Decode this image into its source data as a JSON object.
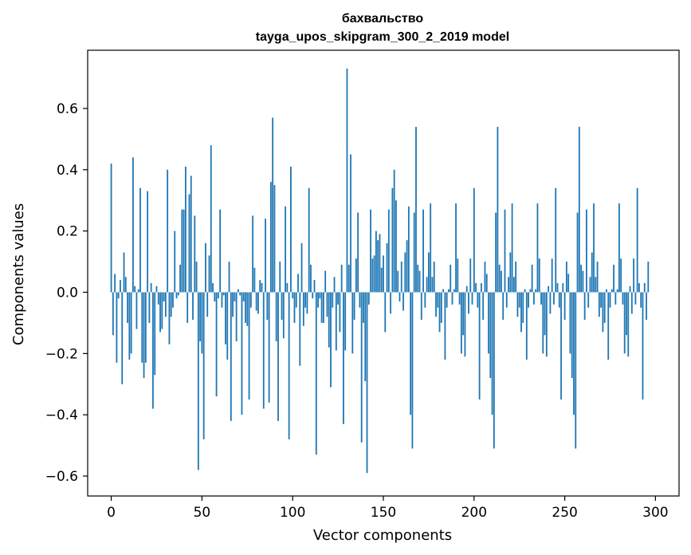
{
  "chart_data": {
    "type": "bar",
    "title_line1": "бахвальство",
    "title_line2": "tayga_upos_skipgram_300_2_2019 model",
    "xlabel": "Vector components",
    "ylabel": "Components values",
    "xlim": [
      -13,
      313
    ],
    "ylim": [
      -0.665,
      0.79
    ],
    "xticks": [
      0,
      50,
      100,
      150,
      200,
      250,
      300
    ],
    "yticks": [
      -0.6,
      -0.4,
      -0.2,
      0.0,
      0.2,
      0.4,
      0.6
    ],
    "ytick_labels": [
      "−0.6",
      "−0.4",
      "−0.2",
      "0.0",
      "0.2",
      "0.4",
      "0.6"
    ],
    "bar_color": "#1f77b4",
    "grid": false,
    "values": [
      0.42,
      -0.14,
      0.06,
      -0.23,
      -0.02,
      0.04,
      -0.3,
      0.13,
      0.05,
      -0.1,
      -0.22,
      -0.2,
      0.44,
      0.02,
      -0.12,
      0.01,
      0.34,
      -0.23,
      -0.28,
      -0.23,
      0.33,
      -0.1,
      0.03,
      -0.38,
      -0.27,
      0.02,
      -0.04,
      -0.13,
      -0.12,
      -0.03,
      -0.08,
      0.4,
      -0.17,
      -0.08,
      -0.05,
      0.2,
      -0.02,
      -0.01,
      0.09,
      0.27,
      0.27,
      0.41,
      -0.1,
      0.32,
      0.38,
      -0.09,
      0.25,
      0.1,
      -0.58,
      -0.16,
      -0.2,
      -0.48,
      0.16,
      -0.08,
      0.12,
      0.48,
      0.03,
      -0.03,
      -0.34,
      -0.02,
      0.27,
      -0.05,
      -0.01,
      -0.17,
      -0.22,
      0.1,
      -0.42,
      -0.08,
      -0.03,
      -0.16,
      0.01,
      -0.01,
      -0.4,
      -0.03,
      -0.1,
      -0.11,
      -0.35,
      -0.05,
      0.25,
      0.08,
      -0.06,
      -0.07,
      0.04,
      0.03,
      -0.38,
      0.24,
      -0.09,
      -0.36,
      0.36,
      0.57,
      0.35,
      -0.16,
      -0.42,
      0.1,
      -0.09,
      -0.15,
      0.28,
      0.03,
      -0.48,
      0.41,
      -0.02,
      -0.1,
      -0.05,
      0.06,
      -0.24,
      0.16,
      -0.11,
      -0.05,
      -0.07,
      0.34,
      0.09,
      -0.02,
      0.04,
      -0.53,
      -0.05,
      -0.02,
      -0.1,
      -0.1,
      0.07,
      -0.08,
      -0.18,
      -0.31,
      -0.05,
      0.05,
      -0.19,
      -0.04,
      -0.13,
      0.09,
      -0.43,
      -0.19,
      0.73,
      0.09,
      0.45,
      -0.2,
      -0.09,
      0.11,
      0.26,
      -0.05,
      -0.49,
      -0.1,
      -0.29,
      -0.59,
      -0.04,
      0.27,
      0.11,
      0.12,
      0.2,
      0.17,
      0.19,
      0.08,
      0.12,
      -0.13,
      0.16,
      0.27,
      -0.07,
      0.34,
      0.4,
      0.3,
      0.07,
      -0.03,
      0.1,
      -0.06,
      0.13,
      0.17,
      0.28,
      -0.4,
      -0.51,
      0.26,
      0.54,
      0.09,
      0.07,
      -0.09,
      0.27,
      -0.05,
      0.05,
      0.13,
      0.29,
      0.05,
      0.1,
      -0.08,
      -0.05,
      -0.13,
      -0.1,
      0.01,
      -0.22,
      -0.05,
      0.01,
      0.09,
      -0.04,
      0.01,
      0.29,
      0.11,
      -0.04,
      -0.2,
      -0.14,
      -0.21,
      0.02,
      -0.07,
      0.11,
      -0.04,
      0.34,
      0.03,
      -0.05,
      -0.35,
      0.03,
      -0.09,
      0.1,
      0.06,
      -0.2,
      -0.28,
      -0.4,
      -0.51,
      0.26,
      0.54,
      0.09,
      0.07,
      -0.09,
      0.27,
      -0.05,
      0.05,
      0.13,
      0.29,
      0.05,
      0.1,
      -0.08,
      -0.05,
      -0.13,
      -0.1,
      0.01,
      -0.22,
      -0.05,
      0.01,
      0.09,
      -0.04,
      0.01,
      0.29,
      0.11,
      -0.04,
      -0.2,
      -0.14,
      -0.21,
      0.02,
      -0.07,
      0.11,
      -0.04,
      0.34,
      0.03,
      -0.05,
      -0.35,
      0.03,
      -0.09,
      0.1,
      0.06,
      -0.2,
      -0.28,
      -0.4,
      -0.51,
      0.26,
      0.54,
      0.09,
      0.07,
      -0.09,
      0.27,
      -0.05,
      0.05,
      0.13,
      0.29,
      0.05,
      0.1,
      -0.08,
      -0.05,
      -0.13,
      -0.1,
      0.01,
      -0.22,
      -0.05,
      0.01,
      0.09,
      -0.04,
      0.01,
      0.29,
      0.11,
      -0.04,
      -0.2,
      -0.14,
      -0.21,
      0.02,
      -0.07,
      0.11,
      -0.04,
      0.34,
      0.03,
      -0.05,
      -0.35,
      0.03,
      -0.09,
      0.1
    ]
  }
}
